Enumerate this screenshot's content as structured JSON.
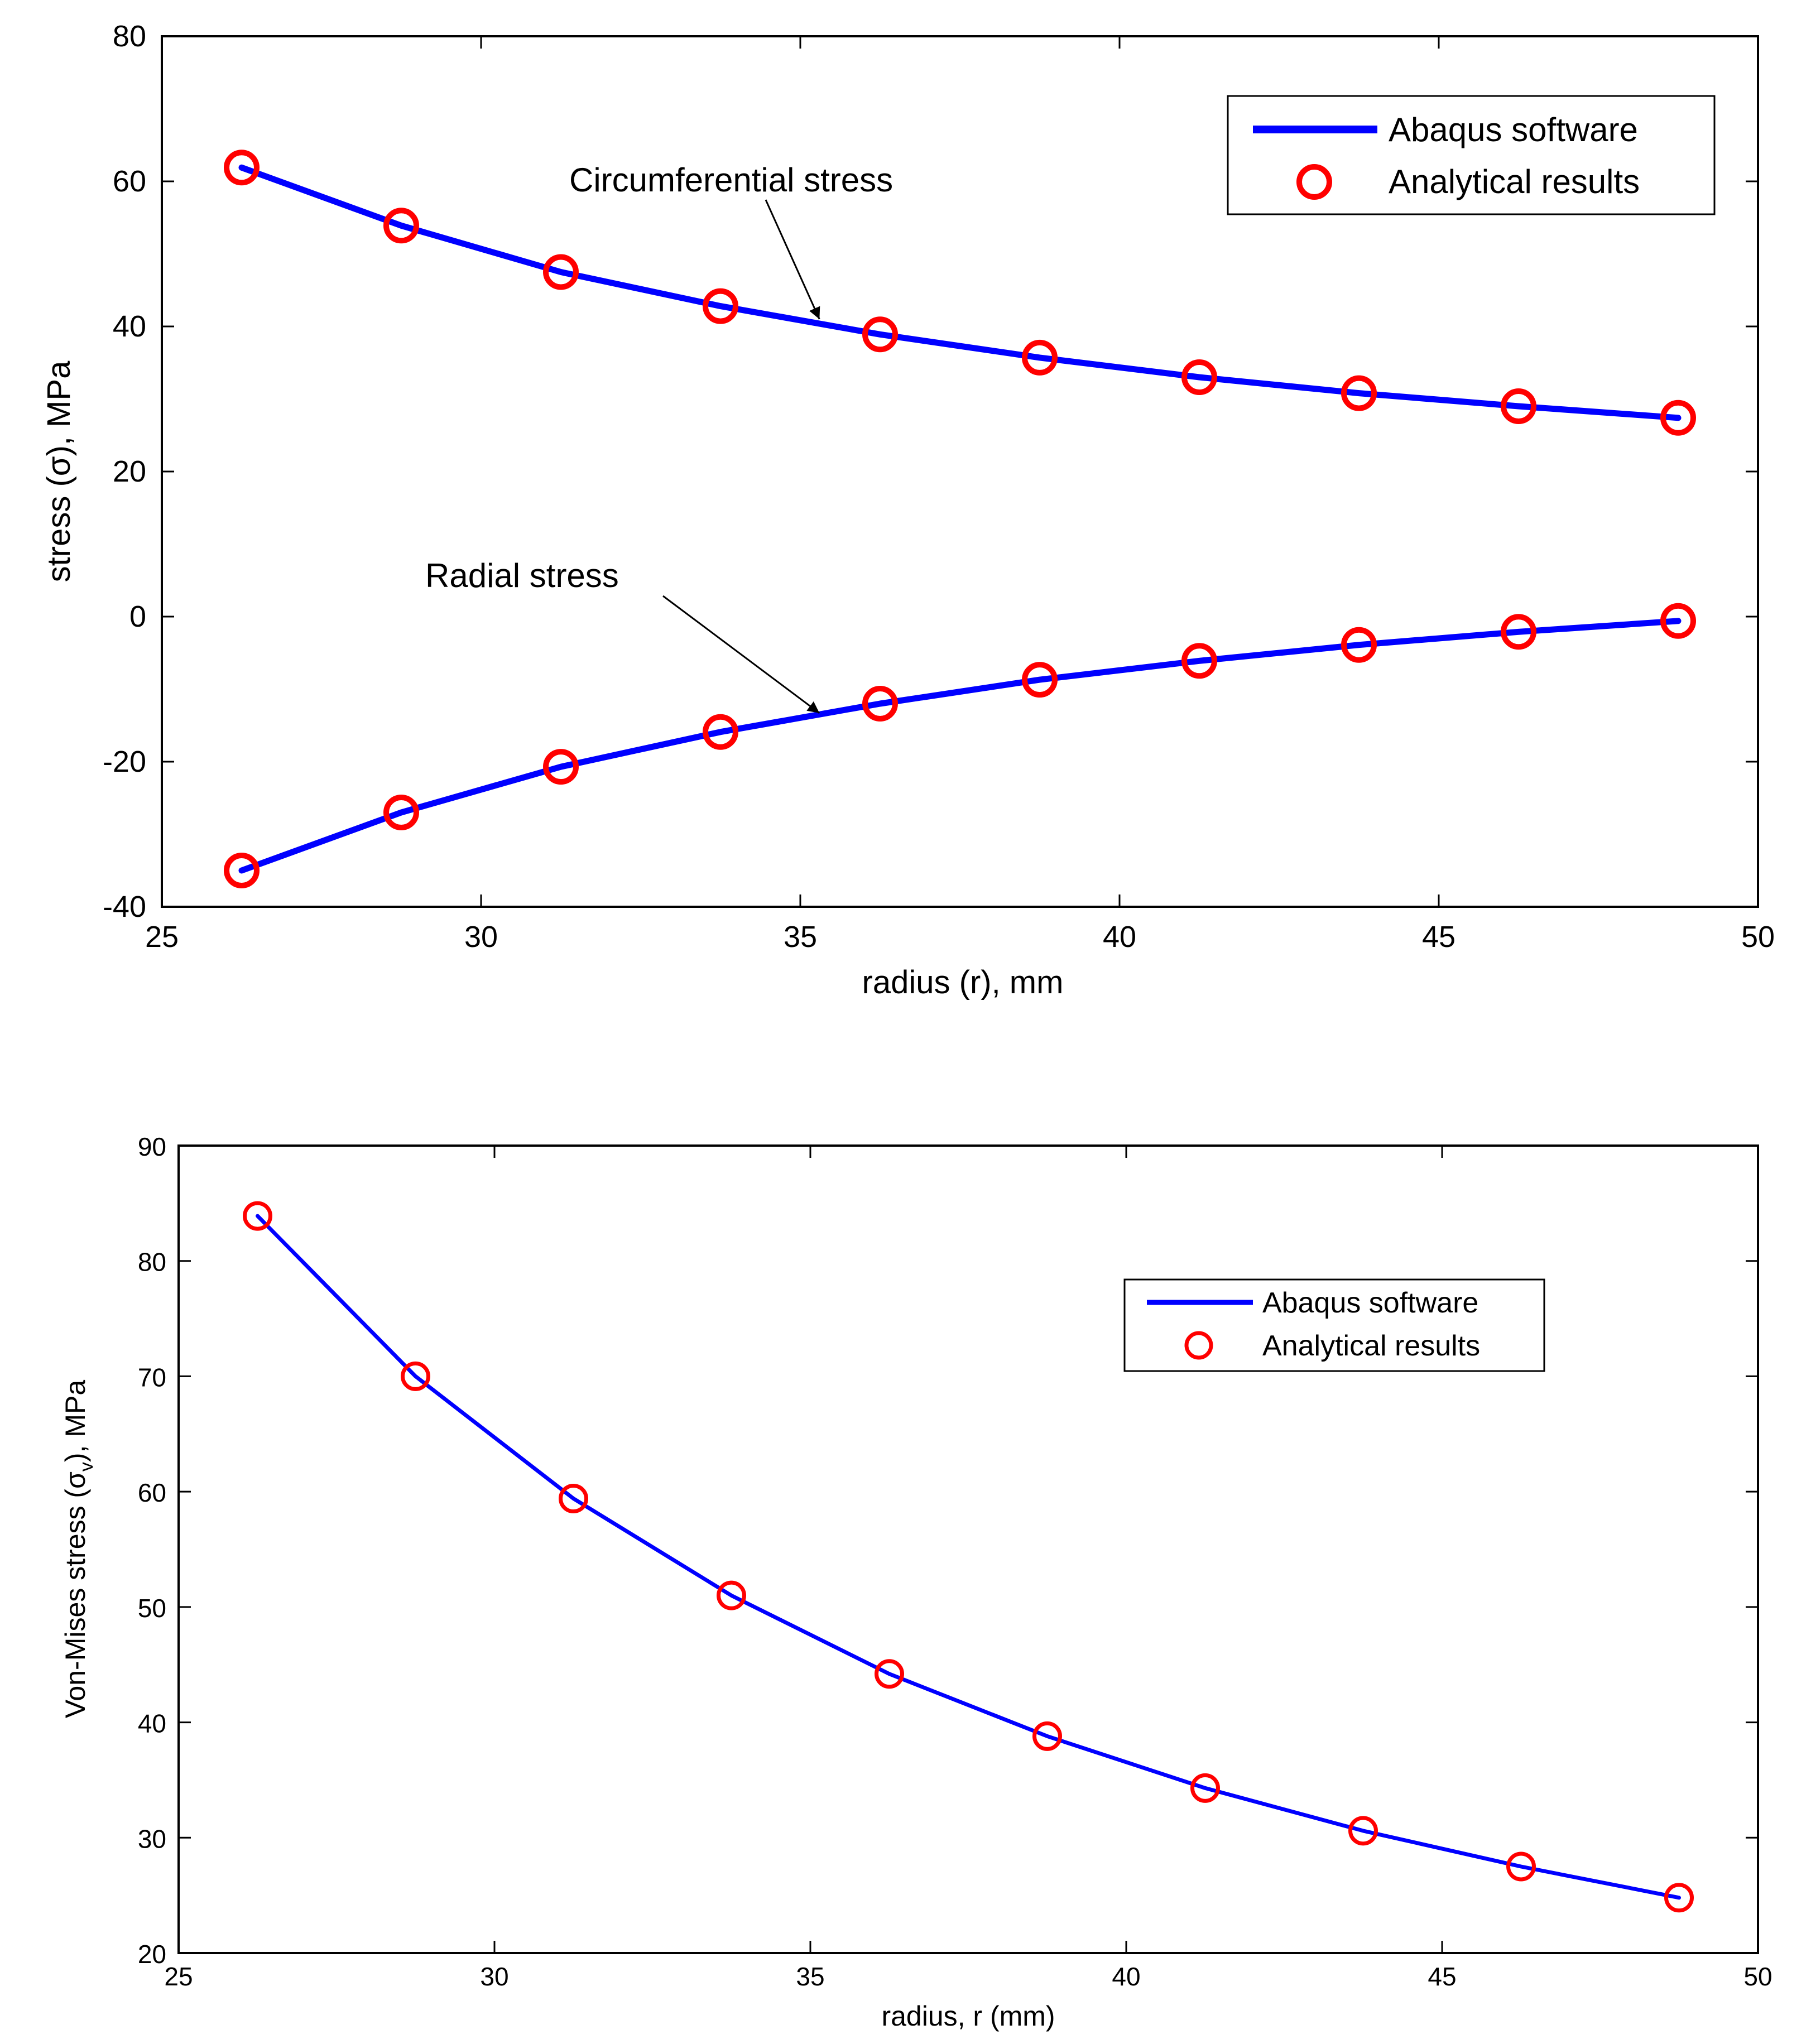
{
  "colors": {
    "line": "#0000ff",
    "marker": "#ff0000",
    "axis": "#000000",
    "background": "#ffffff"
  },
  "chart_data": [
    {
      "type": "line",
      "title": "",
      "xlabel": "radius (r), mm",
      "ylabel": "stress (σ), MPa",
      "xlim": [
        25,
        50
      ],
      "ylim": [
        -40,
        80
      ],
      "xticks": [
        25,
        30,
        35,
        40,
        45,
        50
      ],
      "yticks": [
        -40,
        -20,
        0,
        20,
        40,
        60,
        80
      ],
      "grid": false,
      "legend_position": "top-right",
      "legend": [
        "Abaqus software",
        "Analytical results"
      ],
      "series": [
        {
          "name": "Circumferential stress",
          "x": [
            26.25,
            28.75,
            31.25,
            33.75,
            36.25,
            38.75,
            41.25,
            43.75,
            46.25,
            48.75
          ],
          "line_values": [
            61.9,
            53.9,
            47.5,
            42.8,
            38.9,
            35.7,
            33.0,
            30.8,
            29.0,
            27.4
          ],
          "marker_values": [
            61.9,
            53.9,
            47.5,
            42.8,
            38.9,
            35.7,
            33.0,
            30.8,
            29.0,
            27.4
          ]
        },
        {
          "name": "Radial stress",
          "x": [
            26.25,
            28.75,
            31.25,
            33.75,
            36.25,
            38.75,
            41.25,
            43.75,
            46.25,
            48.75
          ],
          "line_values": [
            -35.0,
            -27.0,
            -20.7,
            -15.9,
            -12.0,
            -8.7,
            -6.1,
            -3.9,
            -2.1,
            -0.6
          ],
          "marker_values": [
            -35.0,
            -27.0,
            -20.7,
            -15.9,
            -12.0,
            -8.7,
            -6.1,
            -3.9,
            -2.1,
            -0.6
          ]
        }
      ],
      "annotations": [
        {
          "text": "Circumferential stress",
          "arrow_to": [
            35.3,
            41.0
          ]
        },
        {
          "text": "Radial stress",
          "arrow_to": [
            35.3,
            -13.3
          ]
        }
      ]
    },
    {
      "type": "line",
      "title": "",
      "xlabel": "radius, r (mm)",
      "ylabel": "Von-Mises stress (σ",
      "ylabel_subscript": "v",
      "ylabel_suffix": "), MPa",
      "xlim": [
        25,
        50
      ],
      "ylim": [
        20,
        90
      ],
      "xticks": [
        25,
        30,
        35,
        40,
        45,
        50
      ],
      "yticks": [
        20,
        30,
        40,
        50,
        60,
        70,
        80,
        90
      ],
      "grid": false,
      "legend_position": "top-right",
      "legend": [
        "Abaqus software",
        "Analytical results"
      ],
      "series": [
        {
          "name": "Von-Mises stress",
          "x": [
            26.25,
            28.75,
            31.25,
            33.75,
            36.25,
            38.75,
            41.25,
            43.75,
            46.25,
            48.75
          ],
          "line_values": [
            83.9,
            70.0,
            59.4,
            51.0,
            44.2,
            38.8,
            34.3,
            30.6,
            27.5,
            24.8
          ],
          "marker_values": [
            83.9,
            70.0,
            59.4,
            51.0,
            44.2,
            38.8,
            34.3,
            30.6,
            27.5,
            24.8
          ]
        }
      ]
    }
  ]
}
